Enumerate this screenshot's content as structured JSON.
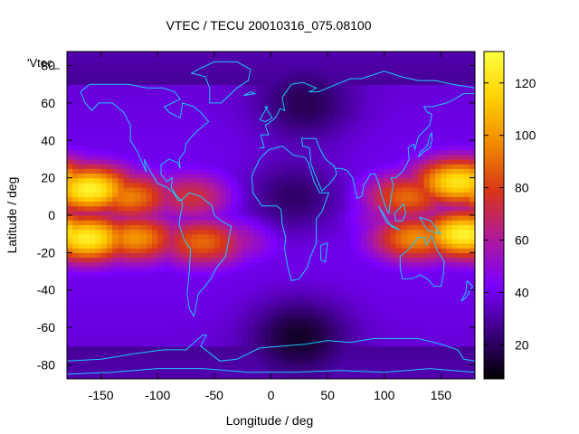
{
  "chart_data": {
    "type": "heatmap",
    "title": "VTEC / TECU 20010316_075.08100",
    "xlabel": "Longitude / deg",
    "ylabel": "Latitude / deg",
    "legend_label": "'Vtec_",
    "xlim": [
      -180,
      180
    ],
    "ylim": [
      -87.5,
      87.5
    ],
    "x_ticks": [
      -150,
      -100,
      -50,
      0,
      50,
      100,
      150
    ],
    "y_ticks": [
      -80,
      -60,
      -40,
      -20,
      0,
      20,
      40,
      60,
      80
    ],
    "colorbar": {
      "range": [
        7,
        132
      ],
      "ticks": [
        20,
        40,
        60,
        80,
        100,
        120
      ],
      "palette": [
        "#000000",
        "#3b0080",
        "#7a00ff",
        "#b01a9a",
        "#d8341a",
        "#f08800",
        "#ffd000",
        "#ffff40"
      ]
    },
    "grid_resolution_deg": {
      "lon": 5,
      "lat": 2.5
    },
    "coastline_color": "#1ec8ff",
    "features": {
      "background_level": 35,
      "pacific_crests": [
        {
          "lon": -160,
          "lat": 14,
          "peak": 128
        },
        {
          "lon": -162,
          "lat": -12,
          "peak": 126
        },
        {
          "lon": -125,
          "lat": 10,
          "peak": 95
        },
        {
          "lon": -120,
          "lat": -12,
          "peak": 100
        },
        {
          "lon": -70,
          "lat": 10,
          "peak": 75
        },
        {
          "lon": -60,
          "lat": -14,
          "peak": 90
        },
        {
          "lon": -30,
          "lat": -12,
          "peak": 62
        },
        {
          "lon": 165,
          "lat": 18,
          "peak": 122
        },
        {
          "lon": 170,
          "lat": -10,
          "peak": 128
        },
        {
          "lon": 120,
          "lat": 10,
          "peak": 90
        },
        {
          "lon": 128,
          "lat": -12,
          "peak": 98
        },
        {
          "lon": 105,
          "lat": 0,
          "peak": 60
        }
      ],
      "lows": [
        {
          "lon": 25,
          "lat": -65,
          "level": 8
        },
        {
          "lon": 20,
          "lat": 10,
          "level": 18
        },
        {
          "lon": 30,
          "lat": 60,
          "level": 15
        }
      ]
    }
  }
}
